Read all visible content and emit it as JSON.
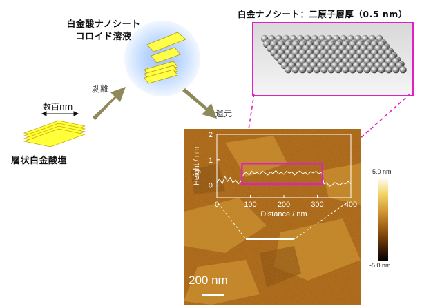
{
  "labels": {
    "colloid_line1": "白金酸ナノシート",
    "colloid_line2": "コロイド溶液",
    "layered_salt": "層状白金酸塩",
    "size_label": "数百nm",
    "exfoliation": "剥離",
    "reduction": "還元",
    "nanosheet_caption": "白金ナノシート：二原子層厚（0.5 nm）"
  },
  "afm": {
    "scale_bar": "200 nm",
    "colorbar_max": "5.0 nm",
    "colorbar_min": "-5.0 nm"
  },
  "chart_data": {
    "type": "line",
    "xlabel": "Distance / nm",
    "ylabel": "Height / nm",
    "xlim": [
      0,
      400
    ],
    "ylim": [
      -0.5,
      2
    ],
    "xticks": [
      "0",
      "100",
      "200",
      "300",
      "400"
    ],
    "yticks": [
      "0",
      "1",
      "2"
    ],
    "series": [
      {
        "x": [
          0,
          8,
          16,
          24,
          32,
          40,
          48,
          56,
          64,
          72,
          80,
          88,
          96,
          104,
          112,
          120,
          128,
          136,
          144,
          152,
          160,
          168,
          176,
          184,
          192,
          200,
          208,
          216,
          224,
          232,
          240,
          248,
          256,
          264,
          272,
          280,
          288,
          296,
          304,
          312,
          320,
          328,
          336,
          344,
          352,
          360,
          368,
          376,
          384,
          392,
          400
        ],
        "y": [
          0.1,
          0.25,
          0.05,
          0.35,
          0.15,
          0.3,
          0.1,
          0.2,
          0.05,
          0.15,
          0.45,
          0.5,
          0.4,
          0.55,
          0.45,
          0.5,
          0.42,
          0.55,
          0.48,
          0.4,
          0.52,
          0.45,
          0.58,
          0.44,
          0.5,
          0.42,
          0.55,
          0.47,
          0.52,
          0.4,
          0.5,
          0.56,
          0.45,
          0.5,
          0.42,
          0.53,
          0.48,
          0.55,
          0.45,
          0.5,
          0.05,
          0.1,
          -0.05,
          0.0,
          0.1,
          0.05,
          0.0,
          0.1,
          0.05,
          0.15,
          0.05
        ]
      }
    ]
  }
}
